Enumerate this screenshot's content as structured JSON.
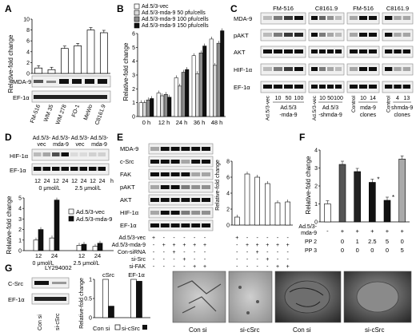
{
  "panels": {
    "A": {
      "letter": "A",
      "chart_data": {
        "type": "bar",
        "ylabel": "Relative-fold change",
        "yticks": [
          "0",
          "2",
          "4",
          "6",
          "8",
          "10"
        ],
        "ylim": [
          0,
          10
        ],
        "categories": [
          "FM-516",
          "WM 35",
          "WM 278",
          "FO-1",
          "MeWo",
          "C8161.9"
        ],
        "values": [
          1.0,
          0.7,
          4.6,
          5.1,
          8.0,
          7.5
        ],
        "colors": [
          "#ffffff",
          "#ffffff",
          "#ffffff",
          "#ffffff",
          "#ffffff",
          "#ffffff"
        ]
      },
      "blots": [
        "MDA-9",
        "EF-1α"
      ]
    },
    "B": {
      "letter": "B",
      "chart_data": {
        "type": "bar",
        "ylabel": "Relative-fold change",
        "yticks": [
          "0",
          "1",
          "2",
          "3",
          "4",
          "5",
          "6"
        ],
        "ylim": [
          0,
          6
        ],
        "categories": [
          "0 h",
          "12 h",
          "24 h",
          "36 h",
          "48 h"
        ],
        "series": [
          {
            "name": "Ad.5/3-vec",
            "values": [
              1.0,
              1.7,
              2.8,
              4.4,
              5.6
            ],
            "color": "#ffffff"
          },
          {
            "name": "Ad.5/3-mda-9 50 pfu/cells",
            "values": [
              1.0,
              1.5,
              2.2,
              3.1,
              3.7
            ],
            "color": "#d9d9d9"
          },
          {
            "name": "Ad.5/3-mda-9 100 pfu/cells",
            "values": [
              1.2,
              1.6,
              3.2,
              4.6,
              5.3
            ],
            "color": "#8c8c8c"
          },
          {
            "name": "Ad.5/3-mda-9 150 pfu/cells",
            "values": [
              1.3,
              1.4,
              3.4,
              5.1,
              6.2
            ],
            "color": "#111111"
          }
        ]
      }
    },
    "C": {
      "letter": "C",
      "groups": [
        {
          "title": "FM-516",
          "lanes": [
            "10",
            "50",
            "100"
          ],
          "left_label": "Ad.5/3-vec",
          "bottom_label_1": "Ad.5/3",
          "bottom_label_2": "-mda-9"
        },
        {
          "title": "C8161.9",
          "lanes": [
            "10",
            "50",
            "100"
          ],
          "left_label": "Ad.5/3-vec",
          "bottom_label_1": "Ad.5/3",
          "bottom_label_2": "-shmda-9"
        },
        {
          "title": "FM-516",
          "lanes": [
            "10",
            "14"
          ],
          "left_label": "Control",
          "bottom_label_1": "mda-9",
          "bottom_label_2": "clones"
        },
        {
          "title": "C8161.9",
          "lanes": [
            "4",
            "13"
          ],
          "left_label": "Control",
          "bottom_label_1": "shmda-9",
          "bottom_label_2": "clones"
        }
      ],
      "blots": [
        "MDA-9",
        "pAKT",
        "AKT",
        "HIF-1α",
        "EF-1α"
      ]
    },
    "D": {
      "letter": "D",
      "top_headers": [
        "Ad.5/3-vec",
        "Ad.5/3-mda-9",
        "Ad.5/3-vec",
        "Ad.5/3-mda-9"
      ],
      "lanes": [
        "12",
        "24",
        "12",
        "24",
        "12",
        "24",
        "12",
        "24"
      ],
      "hour_unit": "h",
      "dose_labels": [
        "0 μmol/L",
        "2.5 μmol/L"
      ],
      "blots": [
        "HIF-1α",
        "EF-1α"
      ],
      "chart_data": {
        "type": "bar",
        "ylabel": "Relative-fold change",
        "yticks": [
          "0",
          "1",
          "2",
          "3",
          "4",
          "5"
        ],
        "ylim": [
          0,
          5
        ],
        "categories": [
          "12",
          "24",
          "12",
          "24"
        ],
        "group_labels": [
          "0 μmol/L",
          "2.5 μmol/L"
        ],
        "xlabel": "LY294002",
        "series": [
          {
            "name": "Ad.5/3-vec",
            "values": [
              1.0,
              1.2,
              0.5,
              0.4
            ],
            "color": "#ffffff"
          },
          {
            "name": "Ad.5/3-mda-9",
            "values": [
              2.0,
              4.8,
              0.6,
              0.7
            ],
            "color": "#111111"
          }
        ]
      }
    },
    "E": {
      "letter": "E",
      "blots": [
        "MDA-9",
        "c-Src",
        "FAK",
        "pAKT",
        "AKT",
        "HIF-1α",
        "EF-1α"
      ],
      "chart_data": {
        "type": "bar",
        "ylabel": "Relative-fold change",
        "yticks": [
          "0",
          "2",
          "4",
          "6",
          "8"
        ],
        "ylim": [
          0,
          8
        ],
        "categories": [
          "1",
          "2",
          "3",
          "4",
          "5",
          "6"
        ],
        "values": [
          1.0,
          6.4,
          6.0,
          5.2,
          2.8,
          2.9
        ],
        "colors": [
          "#ffffff",
          "#ffffff",
          "#ffffff",
          "#ffffff",
          "#ffffff",
          "#ffffff"
        ]
      },
      "treatment_rows": [
        {
          "label": "Ad.5/3-vec",
          "marks": [
            "+",
            "-",
            "-",
            "-",
            "-",
            "-"
          ]
        },
        {
          "label": "Ad.5/3-mda-9",
          "marks": [
            "-",
            "+",
            "+",
            "+",
            "+",
            "+"
          ]
        },
        {
          "label": "Con-siRNA",
          "marks": [
            "-",
            "-",
            "+",
            "-",
            "-",
            "-"
          ]
        },
        {
          "label": "si-Src",
          "marks": [
            "-",
            "-",
            "-",
            "+",
            "-",
            "-"
          ]
        },
        {
          "label": "si-FAK",
          "marks": [
            "-",
            "-",
            "-",
            "-",
            "+",
            "+"
          ]
        }
      ]
    },
    "F": {
      "letter": "F",
      "chart_data": {
        "type": "bar",
        "ylabel": "Relative-fold change",
        "yticks": [
          "0",
          "1",
          "2",
          "3",
          "4"
        ],
        "ylim": [
          0,
          4
        ],
        "categories": [
          "1",
          "2",
          "3",
          "4",
          "5",
          "6"
        ],
        "values": [
          1.0,
          3.2,
          2.8,
          2.2,
          1.2,
          3.5
        ],
        "colors": [
          "#ffffff",
          "#555555",
          "#222222",
          "#111111",
          "#111111",
          "#aaaaaa"
        ]
      },
      "treatment_rows": [
        {
          "label": "Ad.5/3-mda-9",
          "marks": [
            "-",
            "+",
            "+",
            "+",
            "+",
            "+"
          ]
        },
        {
          "label": "PP 2",
          "marks": [
            "",
            "0",
            "1",
            "2.5",
            "5",
            "0"
          ]
        },
        {
          "label": "PP 3",
          "marks": [
            "",
            "0",
            "0",
            "0",
            "0",
            "5"
          ]
        }
      ],
      "stars": [
        "*",
        "*"
      ]
    },
    "G": {
      "letter": "G",
      "blots": [
        "C-Src",
        "EF-1α"
      ],
      "lanes": [
        "Con si",
        "si-cSrc"
      ],
      "chart_data": {
        "type": "bar",
        "ylabel": "Relative-fold change",
        "yticks": [
          "0",
          "0.5",
          "1"
        ],
        "ylim": [
          0,
          1
        ],
        "group_labels": [
          "cSrc",
          "EF-1α"
        ],
        "series": [
          {
            "name": "Con si",
            "values": [
              1.0,
              1.0
            ],
            "color": "#ffffff"
          },
          {
            "name": "si-cSrc",
            "values": [
              0.3,
              0.95
            ],
            "color": "#111111"
          }
        ]
      },
      "photo_labels": [
        "Con si",
        "si-cSrc",
        "Con si",
        "si-cSrc"
      ]
    }
  }
}
